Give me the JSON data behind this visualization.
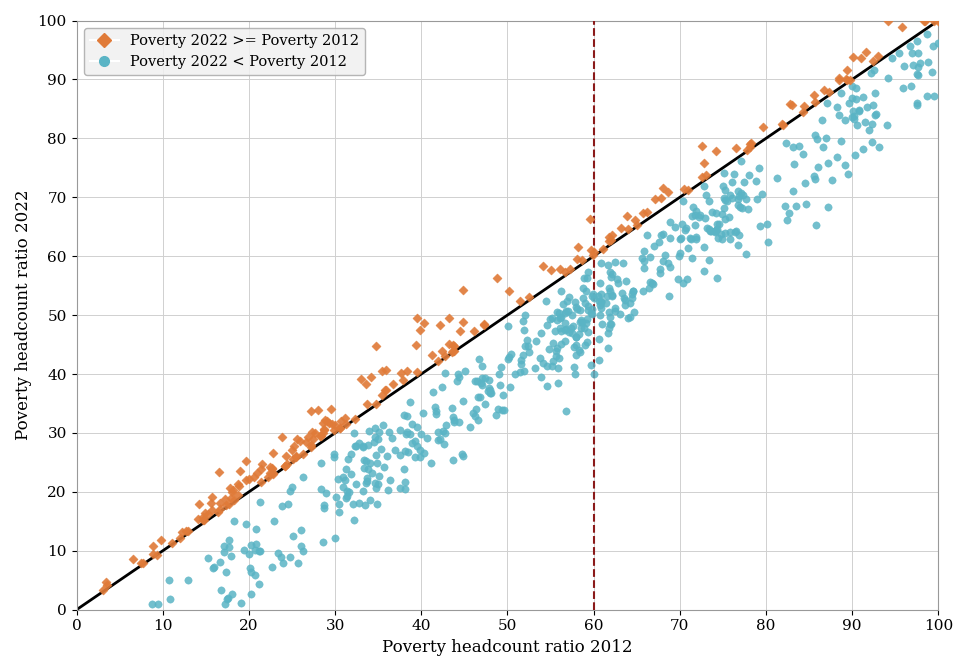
{
  "xlabel": "Poverty headcount ratio 2012",
  "ylabel": "Poverty headcount ratio 2022",
  "xlim": [
    0,
    100
  ],
  "ylim": [
    0,
    100
  ],
  "xticks": [
    0,
    10,
    20,
    30,
    40,
    50,
    60,
    70,
    80,
    90,
    100
  ],
  "yticks": [
    0,
    10,
    20,
    30,
    40,
    50,
    60,
    70,
    80,
    90,
    100
  ],
  "vline_x": 60,
  "vline_color": "#8b1a1a",
  "diagonal_color": "#000000",
  "diagonal_lw": 2.0,
  "orange_color": "#e07b39",
  "blue_color": "#5ab4c5",
  "orange_marker": "D",
  "blue_marker": "o",
  "legend_label_orange": "Poverty 2022 >= Poverty 2012",
  "legend_label_blue": "Poverty 2022 < Poverty 2012",
  "background_color": "#ffffff",
  "grid_color": "#d0d0d0",
  "font_family": "serif",
  "seed": 99
}
